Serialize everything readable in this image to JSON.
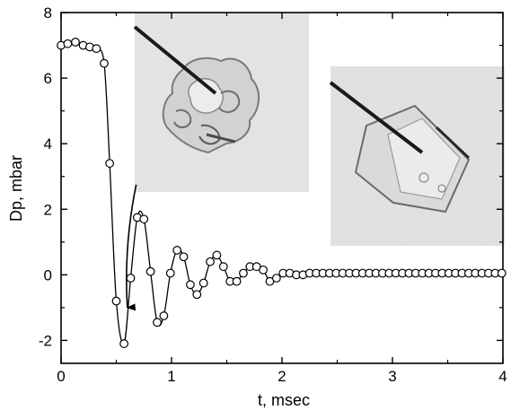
{
  "chart_data": {
    "type": "scatter",
    "xlabel": "t, msec",
    "ylabel": "Dp, mbar",
    "xlim": [
      0,
      4
    ],
    "ylim": [
      -2.7,
      8
    ],
    "xticks": [
      0,
      1,
      2,
      3,
      4
    ],
    "yticks": [
      -2,
      0,
      2,
      4,
      6,
      8
    ],
    "x_tick_labels": [
      "0",
      "1",
      "2",
      "3",
      "4"
    ],
    "y_tick_labels": [
      "-2",
      "0",
      "2",
      "4",
      "6",
      "8"
    ],
    "grid": false,
    "legend": "none",
    "marker": "open-circle",
    "line": "solid-curve-through-points",
    "series": [
      {
        "x": [
          0.0,
          0.06,
          0.13,
          0.2,
          0.26,
          0.32,
          0.39,
          0.44,
          0.5,
          0.57,
          0.63,
          0.69,
          0.75,
          0.81,
          0.87,
          0.93,
          0.99,
          1.05,
          1.11,
          1.17,
          1.23,
          1.29,
          1.35,
          1.41,
          1.47,
          1.53,
          1.59,
          1.65,
          1.71,
          1.77,
          1.83,
          1.89,
          1.95,
          2.01,
          2.07,
          2.13,
          2.19,
          2.25,
          2.31,
          2.37,
          2.43,
          2.49,
          2.55,
          2.61,
          2.67,
          2.73,
          2.79,
          2.85,
          2.91,
          2.97,
          3.03,
          3.09,
          3.15,
          3.21,
          3.27,
          3.33,
          3.39,
          3.45,
          3.51,
          3.57,
          3.63,
          3.69,
          3.75,
          3.81,
          3.87,
          3.93,
          3.99
        ],
        "y": [
          7.0,
          7.05,
          7.1,
          7.0,
          6.95,
          6.9,
          6.45,
          3.4,
          -0.8,
          -2.1,
          -0.1,
          1.75,
          1.7,
          0.1,
          -1.45,
          -1.25,
          0.05,
          0.75,
          0.55,
          -0.3,
          -0.6,
          -0.25,
          0.4,
          0.6,
          0.25,
          -0.2,
          -0.2,
          0.05,
          0.25,
          0.25,
          0.15,
          -0.2,
          -0.1,
          0.05,
          0.05,
          0.0,
          0.0,
          0.05,
          0.05,
          0.05,
          0.05,
          0.05,
          0.05,
          0.05,
          0.05,
          0.05,
          0.05,
          0.05,
          0.05,
          0.05,
          0.05,
          0.05,
          0.05,
          0.05,
          0.05,
          0.05,
          0.05,
          0.05,
          0.05,
          0.05,
          0.05,
          0.05,
          0.05,
          0.05,
          0.05,
          0.05,
          0.05
        ]
      }
    ],
    "annotations": [
      {
        "type": "arrow",
        "from": [
          0.68,
          2.75
        ],
        "to": [
          0.6,
          -1.0
        ]
      }
    ],
    "insets": [
      {
        "content": "photograph-crystal-with-needle-rough"
      },
      {
        "content": "photograph-crystal-with-needle-faceted"
      }
    ]
  }
}
